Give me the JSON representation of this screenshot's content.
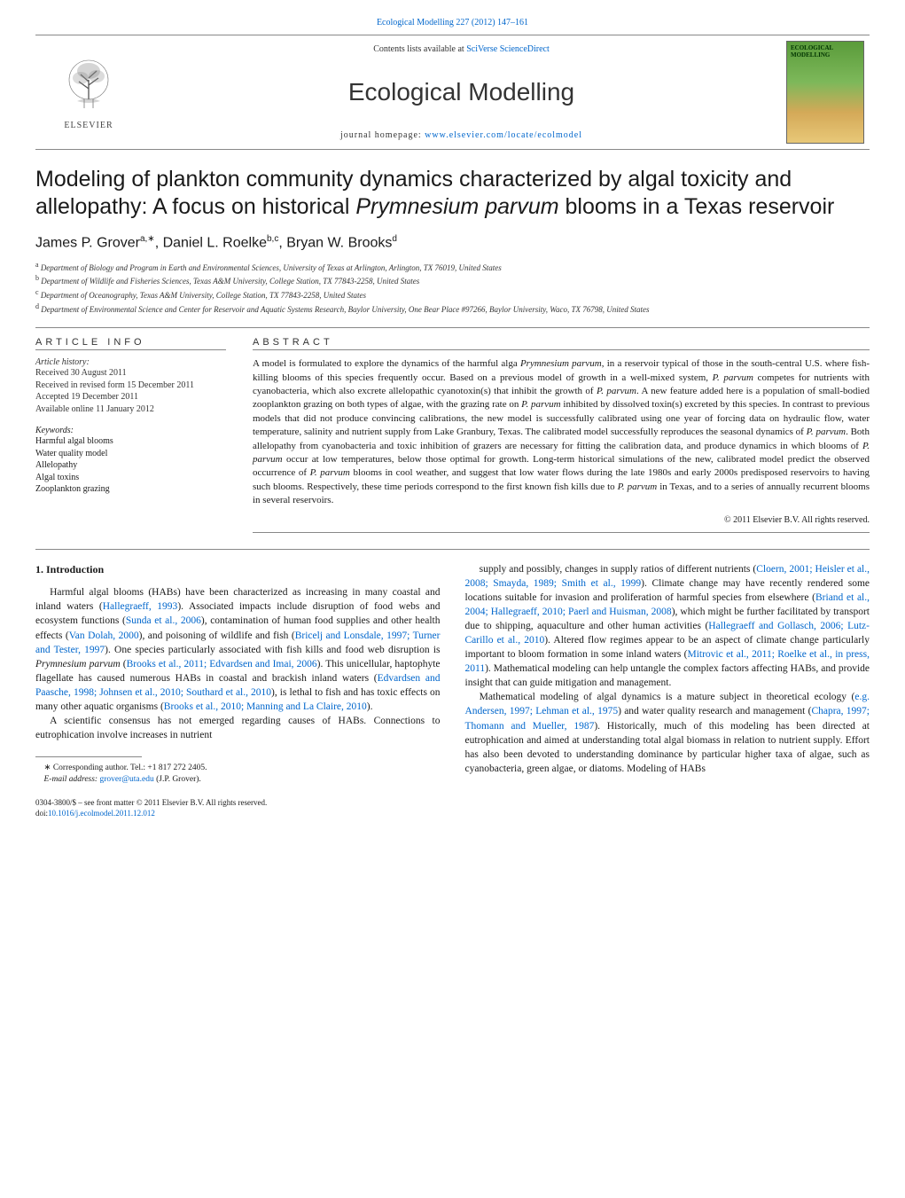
{
  "citation": "Ecological Modelling 227 (2012) 147–161",
  "header": {
    "contents_prefix": "Contents lists available at ",
    "contents_link": "SciVerse ScienceDirect",
    "journal_title": "Ecological Modelling",
    "homepage_prefix": "journal homepage: ",
    "homepage_link": "www.elsevier.com/locate/ecolmodel",
    "publisher": "ELSEVIER",
    "cover_label": "ECOLOGICAL MODELLING"
  },
  "title_part1": "Modeling of plankton community dynamics characterized by algal toxicity and allelopathy: A focus on historical ",
  "title_italic": "Prymnesium parvum",
  "title_part2": " blooms in a Texas reservoir",
  "authors": {
    "a1": "James P. Grover",
    "a1_aff": "a,∗",
    "a2": "Daniel L. Roelke",
    "a2_aff": "b,c",
    "a3": "Bryan W. Brooks",
    "a3_aff": "d"
  },
  "affiliations": {
    "a": "Department of Biology and Program in Earth and Environmental Sciences, University of Texas at Arlington, Arlington, TX 76019, United States",
    "b": "Department of Wildlife and Fisheries Sciences, Texas A&M University, College Station, TX 77843-2258, United States",
    "c": "Department of Oceanography, Texas A&M University, College Station, TX 77843-2258, United States",
    "d": "Department of Environmental Science and Center for Reservoir and Aquatic Systems Research, Baylor University, One Bear Place #97266, Baylor University, Waco, TX 76798, United States"
  },
  "article_info_label": "article info",
  "abstract_label": "abstract",
  "history": {
    "label": "Article history:",
    "received": "Received 30 August 2011",
    "revised": "Received in revised form 15 December 2011",
    "accepted": "Accepted 19 December 2011",
    "online": "Available online 11 January 2012"
  },
  "keywords": {
    "label": "Keywords:",
    "items": [
      "Harmful algal blooms",
      "Water quality model",
      "Allelopathy",
      "Algal toxins",
      "Zooplankton grazing"
    ]
  },
  "abstract": "A model is formulated to explore the dynamics of the harmful alga Prymnesium parvum, in a reservoir typical of those in the south-central U.S. where fish-killing blooms of this species frequently occur. Based on a previous model of growth in a well-mixed system, P. parvum competes for nutrients with cyanobacteria, which also excrete allelopathic cyanotoxin(s) that inhibit the growth of P. parvum. A new feature added here is a population of small-bodied zooplankton grazing on both types of algae, with the grazing rate on P. parvum inhibited by dissolved toxin(s) excreted by this species. In contrast to previous models that did not produce convincing calibrations, the new model is successfully calibrated using one year of forcing data on hydraulic flow, water temperature, salinity and nutrient supply from Lake Granbury, Texas. The calibrated model successfully reproduces the seasonal dynamics of P. parvum. Both allelopathy from cyanobacteria and toxic inhibition of grazers are necessary for fitting the calibration data, and produce dynamics in which blooms of P. parvum occur at low temperatures, below those optimal for growth. Long-term historical simulations of the new, calibrated model predict the observed occurrence of P. parvum blooms in cool weather, and suggest that low water flows during the late 1980s and early 2000s predisposed reservoirs to having such blooms. Respectively, these time periods correspond to the first known fish kills due to P. parvum in Texas, and to a series of annually recurrent blooms in several reservoirs.",
  "copyright": "© 2011 Elsevier B.V. All rights reserved.",
  "intro_heading": "1.  Introduction",
  "col1_p1": "Harmful algal blooms (HABs) have been characterized as increasing in many coastal and inland waters (Hallegraeff, 1993). Associated impacts include disruption of food webs and ecosystem functions (Sunda et al., 2006), contamination of human food supplies and other health effects (Van Dolah, 2000), and poisoning of wildlife and fish (Bricelj and Lonsdale, 1997; Turner and Tester, 1997). One species particularly associated with fish kills and food web disruption is Prymnesium parvum (Brooks et al., 2011; Edvardsen and Imai, 2006). This unicellular, haptophyte flagellate has caused numerous HABs in coastal and brackish inland waters (Edvardsen and Paasche, 1998; Johnsen et al., 2010; Southard et al., 2010), is lethal to fish and has toxic effects on many other aquatic organisms (Brooks et al., 2010; Manning and La Claire, 2010).",
  "col1_p2": "A scientific consensus has not emerged regarding causes of HABs. Connections to eutrophication involve increases in nutrient",
  "col2_p1": "supply and possibly, changes in supply ratios of different nutrients (Cloern, 2001; Heisler et al., 2008; Smayda, 1989; Smith et al., 1999). Climate change may have recently rendered some locations suitable for invasion and proliferation of harmful species from elsewhere (Briand et al., 2004; Hallegraeff, 2010; Paerl and Huisman, 2008), which might be further facilitated by transport due to shipping, aquaculture and other human activities (Hallegraeff and Gollasch, 2006; Lutz-Carillo et al., 2010). Altered flow regimes appear to be an aspect of climate change particularly important to bloom formation in some inland waters (Mitrovic et al., 2011; Roelke et al., in press, 2011). Mathematical modeling can help untangle the complex factors affecting HABs, and provide insight that can guide mitigation and management.",
  "col2_p2": "Mathematical modeling of algal dynamics is a mature subject in theoretical ecology (e.g. Andersen, 1997; Lehman et al., 1975) and water quality research and management (Chapra, 1997; Thomann and Mueller, 1987). Historically, much of this modeling has been directed at eutrophication and aimed at understanding total algal biomass in relation to nutrient supply. Effort has also been devoted to understanding dominance by particular higher taxa of algae, such as cyanobacteria, green algae, or diatoms. Modeling of HABs",
  "footnote": {
    "corr": "∗ Corresponding author. Tel.: +1 817 272 2405.",
    "email_label": "E-mail address: ",
    "email": "grover@uta.edu",
    "email_suffix": " (J.P. Grover)."
  },
  "bottom": {
    "line1": "0304-3800/$ – see front matter © 2011 Elsevier B.V. All rights reserved.",
    "doi_prefix": "doi:",
    "doi": "10.1016/j.ecolmodel.2011.12.012"
  },
  "colors": {
    "link": "#0066cc",
    "rule": "#888888",
    "text": "#1a1a1a"
  }
}
